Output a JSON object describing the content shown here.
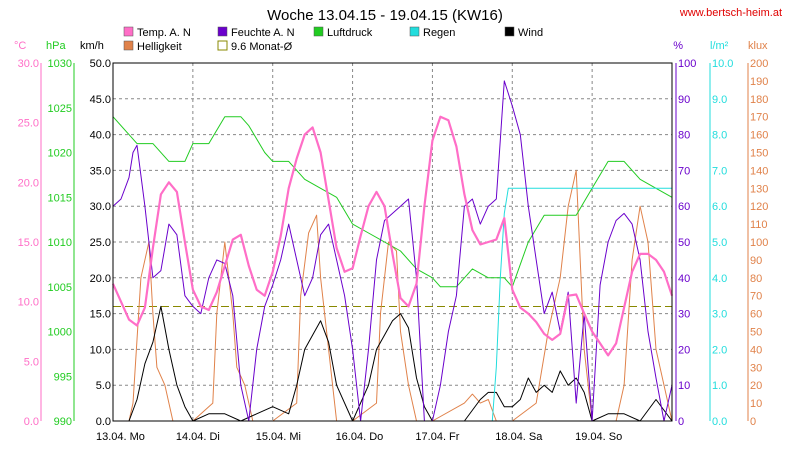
{
  "chart_data": {
    "type": "line",
    "title": "Woche 13.04.15 - 19.04.15 (KW16)",
    "source": "www.bertsch-heim.at",
    "colors": {
      "temp": "#ff6ec7",
      "helligkeit": "#e0824a",
      "feuchte": "#6a00cc",
      "monat": "#888800",
      "luftdruck": "#22cc22",
      "regen": "#22dddd",
      "wind": "#000000",
      "grid": "#888888"
    },
    "legend": [
      {
        "key": "temp",
        "label": "Temp. A. N",
        "kind": "box"
      },
      {
        "key": "feuchte",
        "label": "Feuchte A. N",
        "kind": "box"
      },
      {
        "key": "luftdruck",
        "label": "Luftdruck",
        "kind": "box"
      },
      {
        "key": "regen",
        "label": "Regen",
        "kind": "box"
      },
      {
        "key": "wind",
        "label": "Wind",
        "kind": "box"
      },
      {
        "key": "helligkeit",
        "label": "Helligkeit",
        "kind": "box"
      },
      {
        "key": "monat",
        "label": "9.6 Monat-Ø",
        "kind": "outline"
      }
    ],
    "x_ticks": [
      "13.04.  Mo",
      "14.04.  Di",
      "15.04.  Mi",
      "16.04.  Do",
      "17.04.  Fr",
      "18.04.  Sa",
      "19.04.  So"
    ],
    "x_range_days": [
      0,
      7
    ],
    "axes": {
      "temp": {
        "unit": "°C",
        "ticks": [
          "30.0",
          "25.0",
          "20.0",
          "15.0",
          "10.0",
          "5.0",
          "0.0"
        ],
        "min": 0,
        "max": 30,
        "color": "#ff6ec7"
      },
      "luftdruck": {
        "unit": "hPa",
        "ticks": [
          "1030",
          "1025",
          "1020",
          "1015",
          "1010",
          "1005",
          "1000",
          "995",
          "990"
        ],
        "min": 990,
        "max": 1030,
        "color": "#22cc22"
      },
      "wind": {
        "unit": "km/h",
        "ticks": [
          "50.0",
          "45.0",
          "40.0",
          "35.0",
          "30.0",
          "25.0",
          "20.0",
          "15.0",
          "10.0",
          "5.0",
          "0.0"
        ],
        "min": 0,
        "max": 50,
        "color": "#000000"
      },
      "feuchte": {
        "unit": "%",
        "ticks": [
          "100",
          "90",
          "80",
          "70",
          "60",
          "50",
          "40",
          "30",
          "20",
          "10",
          "0"
        ],
        "min": 0,
        "max": 100,
        "color": "#6a00cc"
      },
      "regen": {
        "unit": "l/m²",
        "ticks": [
          "10.0",
          "9.0",
          "8.0",
          "7.0",
          "6.0",
          "5.0",
          "4.0",
          "3.0",
          "2.0",
          "1.0",
          "0.0"
        ],
        "min": 0,
        "max": 10,
        "color": "#22dddd"
      },
      "helligkeit": {
        "unit": "klux",
        "ticks": [
          "200",
          "190",
          "180",
          "170",
          "160",
          "150",
          "140",
          "130",
          "120",
          "110",
          "100",
          "90",
          "80",
          "70",
          "60",
          "50",
          "40",
          "30",
          "20",
          "10",
          "0"
        ],
        "min": 0,
        "max": 200,
        "color": "#e0824a"
      }
    },
    "monat_mittel": 9.6,
    "series": [
      {
        "key": "temp",
        "name": "Temp. A. N",
        "x": [
          0,
          0.1,
          0.2,
          0.3,
          0.4,
          0.5,
          0.6,
          0.7,
          0.8,
          0.9,
          1.0,
          1.1,
          1.2,
          1.3,
          1.4,
          1.5,
          1.6,
          1.7,
          1.8,
          1.9,
          2.0,
          2.1,
          2.2,
          2.3,
          2.4,
          2.5,
          2.6,
          2.7,
          2.8,
          2.9,
          3.0,
          3.1,
          3.2,
          3.3,
          3.4,
          3.5,
          3.6,
          3.7,
          3.8,
          3.9,
          4.0,
          4.1,
          4.2,
          4.3,
          4.4,
          4.5,
          4.6,
          4.7,
          4.8,
          4.9,
          5.0,
          5.1,
          5.2,
          5.3,
          5.4,
          5.5,
          5.6,
          5.7,
          5.8,
          5.9,
          6.0,
          6.1,
          6.2,
          6.3,
          6.4,
          6.5,
          6.6,
          6.7,
          6.8,
          6.9,
          7.0
        ],
        "y": [
          11.5,
          10.0,
          8.5,
          8.0,
          9.5,
          14.5,
          19.0,
          20.0,
          19.2,
          15.0,
          11.0,
          9.6,
          9.3,
          10.8,
          13.0,
          15.2,
          15.6,
          13.0,
          11.0,
          10.5,
          12.5,
          15.5,
          19.5,
          22.0,
          24.0,
          24.6,
          22.5,
          18.5,
          14.5,
          12.5,
          12.8,
          15.5,
          18.0,
          19.2,
          18.0,
          14.0,
          10.3,
          9.6,
          11.5,
          18.0,
          23.5,
          25.5,
          25.2,
          23.0,
          19.0,
          16.0,
          14.8,
          15.0,
          15.2,
          17.0,
          11.0,
          9.5,
          9.0,
          8.3,
          7.3,
          6.8,
          7.3,
          10.5,
          10.6,
          9.0,
          7.5,
          6.5,
          5.5,
          6.5,
          9.5,
          12.5,
          14.0,
          14.0,
          13.5,
          12.5,
          10.5
        ]
      },
      {
        "key": "feuchte",
        "name": "Feuchte A. N",
        "x": [
          0,
          0.1,
          0.2,
          0.25,
          0.3,
          0.4,
          0.5,
          0.6,
          0.7,
          0.8,
          0.9,
          1.0,
          1.1,
          1.2,
          1.3,
          1.4,
          1.5,
          1.6,
          1.7,
          1.8,
          1.9,
          2.0,
          2.1,
          2.2,
          2.3,
          2.4,
          2.5,
          2.6,
          2.7,
          2.8,
          2.9,
          3.0,
          3.1,
          3.2,
          3.3,
          3.4,
          3.5,
          3.6,
          3.7,
          3.8,
          3.9,
          4.0,
          4.1,
          4.2,
          4.3,
          4.4,
          4.5,
          4.6,
          4.7,
          4.8,
          4.9,
          5.0,
          5.1,
          5.2,
          5.3,
          5.4,
          5.5,
          5.6,
          5.7,
          5.8,
          5.9,
          6.0,
          6.1,
          6.2,
          6.3,
          6.4,
          6.5,
          6.6,
          6.7,
          6.8,
          6.9,
          7.0
        ],
        "y": [
          60,
          62,
          68,
          75,
          77,
          60,
          40,
          42,
          55,
          52,
          35,
          32,
          30,
          40,
          45,
          44,
          35,
          10,
          0,
          20,
          32,
          38,
          45,
          55,
          45,
          35,
          40,
          52,
          55,
          45,
          35,
          20,
          0,
          20,
          45,
          56,
          58,
          60,
          62,
          40,
          0,
          0,
          10,
          25,
          35,
          60,
          62,
          55,
          60,
          62,
          95,
          88,
          80,
          60,
          45,
          30,
          36,
          25,
          36,
          5,
          30,
          0,
          38,
          50,
          56,
          58,
          55,
          45,
          25,
          12,
          0,
          10
        ]
      },
      {
        "key": "luftdruck",
        "name": "Luftdruck",
        "x": [
          0,
          0.2,
          0.3,
          0.5,
          0.7,
          0.9,
          1.0,
          1.2,
          1.4,
          1.6,
          1.7,
          1.9,
          2.0,
          2.2,
          2.4,
          2.6,
          2.8,
          3.0,
          3.2,
          3.4,
          3.6,
          3.8,
          4.0,
          4.1,
          4.3,
          4.5,
          4.7,
          4.9,
          5.0,
          5.2,
          5.4,
          5.6,
          5.8,
          6.0,
          6.2,
          6.4,
          6.6,
          6.8,
          7.0
        ],
        "y": [
          1024,
          1022,
          1021,
          1021,
          1019,
          1019,
          1021,
          1021,
          1024,
          1024,
          1023,
          1020,
          1019,
          1019,
          1017,
          1016,
          1015,
          1012,
          1011,
          1010,
          1009,
          1007,
          1006,
          1005,
          1005,
          1007,
          1006,
          1006,
          1005,
          1010,
          1013,
          1013,
          1013,
          1016,
          1019,
          1019,
          1017,
          1016,
          1015
        ]
      },
      {
        "key": "regen",
        "name": "Regen",
        "x": [
          0,
          4.6,
          4.75,
          4.8,
          4.85,
          4.9,
          4.95,
          5.0,
          5.1,
          5.5,
          6.0,
          6.5,
          7.0
        ],
        "y": [
          0,
          0,
          0,
          1.5,
          4.0,
          5.8,
          6.5,
          6.5,
          6.5,
          6.5,
          6.5,
          6.5,
          6.5
        ]
      },
      {
        "key": "wind",
        "name": "Wind",
        "x": [
          0,
          0.2,
          0.3,
          0.4,
          0.5,
          0.6,
          0.7,
          0.8,
          0.9,
          1.0,
          1.2,
          1.4,
          1.6,
          1.8,
          2.0,
          2.2,
          2.3,
          2.4,
          2.5,
          2.6,
          2.7,
          2.8,
          3.0,
          3.2,
          3.3,
          3.4,
          3.5,
          3.6,
          3.7,
          3.8,
          3.9,
          4.0,
          4.2,
          4.4,
          4.6,
          4.7,
          4.8,
          4.9,
          5.0,
          5.1,
          5.2,
          5.3,
          5.4,
          5.5,
          5.6,
          5.7,
          5.8,
          5.9,
          6.0,
          6.2,
          6.4,
          6.6,
          6.8,
          7.0
        ],
        "y": [
          0,
          0,
          3,
          8,
          11,
          16,
          10,
          5,
          2,
          0,
          1,
          1,
          0,
          1,
          2,
          1,
          5,
          10,
          12,
          14,
          11,
          5,
          0,
          5,
          10,
          12,
          14,
          15,
          13,
          6,
          2,
          0,
          0,
          0,
          3,
          4,
          4,
          2,
          2,
          3,
          6,
          4,
          5,
          4,
          7,
          5,
          6,
          4,
          0,
          1,
          1,
          0,
          3,
          0
        ]
      },
      {
        "key": "helligkeit",
        "name": "Helligkeit",
        "x": [
          0,
          0.2,
          0.25,
          0.35,
          0.45,
          0.5,
          0.55,
          0.65,
          0.75,
          1.0,
          1.25,
          1.3,
          1.4,
          1.5,
          1.55,
          1.65,
          1.75,
          2.0,
          2.3,
          2.35,
          2.45,
          2.55,
          2.6,
          2.7,
          2.8,
          3.0,
          3.3,
          3.35,
          3.45,
          3.55,
          3.6,
          3.7,
          3.8,
          4.0,
          4.4,
          4.5,
          4.6,
          4.7,
          4.8,
          5.0,
          5.3,
          5.45,
          5.6,
          5.7,
          5.8,
          5.9,
          6.0,
          6.3,
          6.4,
          6.5,
          6.6,
          6.7,
          6.8,
          7.0
        ],
        "y": [
          0,
          0,
          10,
          80,
          100,
          60,
          30,
          20,
          0,
          0,
          10,
          60,
          100,
          60,
          30,
          20,
          0,
          0,
          10,
          70,
          105,
          115,
          80,
          40,
          0,
          0,
          10,
          60,
          100,
          95,
          50,
          20,
          0,
          0,
          10,
          15,
          10,
          12,
          0,
          0,
          10,
          50,
          80,
          120,
          140,
          40,
          0,
          0,
          20,
          90,
          120,
          100,
          40,
          0
        ]
      }
    ]
  }
}
